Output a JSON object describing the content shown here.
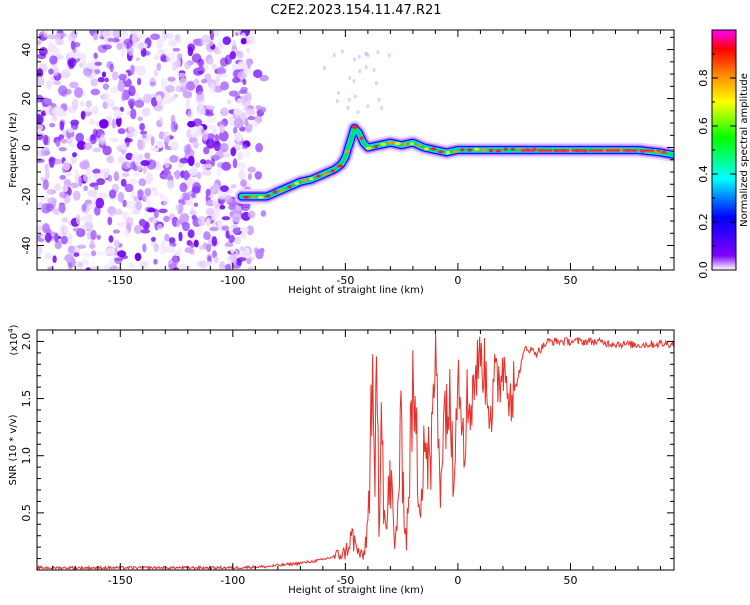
{
  "title": "C2E2.2023.154.11.47.R21",
  "chart_data": [
    {
      "type": "heatmap",
      "xlabel": "Height of straight line (km)",
      "ylabel": "Frequency (Hz)",
      "xlim": [
        -187,
        96
      ],
      "ylim": [
        -50,
        48
      ],
      "xticks": [
        -150,
        -100,
        -50,
        0,
        50
      ],
      "yticks": [
        -40,
        -20,
        0,
        20,
        40
      ],
      "ridge_x": [
        -96,
        -90,
        -85,
        -80,
        -75,
        -70,
        -65,
        -60,
        -55,
        -52,
        -50,
        -48,
        -46,
        -44,
        -42,
        -40,
        -35,
        -30,
        -25,
        -20,
        -15,
        -10,
        -5,
        0,
        5,
        10,
        20,
        30,
        40,
        50,
        60,
        70,
        80,
        90,
        96
      ],
      "ridge_y": [
        -20,
        -20,
        -20,
        -18,
        -16,
        -14,
        -13,
        -11,
        -9,
        -7,
        -4,
        2,
        8,
        6,
        2,
        0,
        1,
        2,
        1,
        2,
        0,
        -1,
        -2,
        -1,
        -1,
        -1,
        -1,
        -1,
        -1,
        -1,
        -1,
        -1,
        -1,
        -2,
        -3
      ],
      "noise_region": [
        -187,
        -92
      ],
      "colorbar": {
        "label": "Normalized spectral amplitude",
        "range": [
          0,
          1
        ],
        "ticks": [
          "0.0",
          "0.2",
          "0.4",
          "0.6",
          "0.8"
        ],
        "colors": [
          "#ffffff",
          "#8000ff",
          "#0000ff",
          "#00ffff",
          "#00ff00",
          "#ffff00",
          "#ff8000",
          "#ff0000",
          "#ff00ff"
        ]
      }
    },
    {
      "type": "line",
      "xlabel": "Height of straight line (km)",
      "ylabel": "SNR (10 * v/v)",
      "scale_label": "(x10",
      "scale_exp": "4",
      "scale_close": ")",
      "xlim": [
        -187,
        96
      ],
      "ylim": [
        0,
        2.1
      ],
      "xticks": [
        -150,
        -100,
        -50,
        0,
        50
      ],
      "yticks": [
        "0.5",
        "1.0",
        "1.5",
        "2.0"
      ],
      "line_color": "#e8302a",
      "anchors_x": [
        -187,
        -100,
        -85,
        -70,
        -60,
        -50,
        -47,
        -45,
        -42,
        -40,
        -38,
        -37,
        -36,
        -35,
        -34,
        -33,
        -32,
        -30,
        -28,
        -25,
        -23,
        -20,
        -17,
        -15,
        -12,
        -10,
        -8,
        -5,
        -2,
        0,
        3,
        6,
        10,
        15,
        20,
        25,
        30,
        35,
        40,
        50,
        60,
        70,
        80,
        90,
        96
      ],
      "anchors_y": [
        0.02,
        0.02,
        0.03,
        0.06,
        0.09,
        0.15,
        0.3,
        0.18,
        0.1,
        0.4,
        1.6,
        0.5,
        1.95,
        0.35,
        1.7,
        0.7,
        0.3,
        0.85,
        0.15,
        1.2,
        0.2,
        1.6,
        0.6,
        1.25,
        0.8,
        1.95,
        0.9,
        1.55,
        1.1,
        1.75,
        1.3,
        1.55,
        1.9,
        1.45,
        1.8,
        1.55,
        1.95,
        1.9,
        2.0,
        2.0,
        2.0,
        1.98,
        1.97,
        1.98,
        1.98
      ]
    }
  ]
}
